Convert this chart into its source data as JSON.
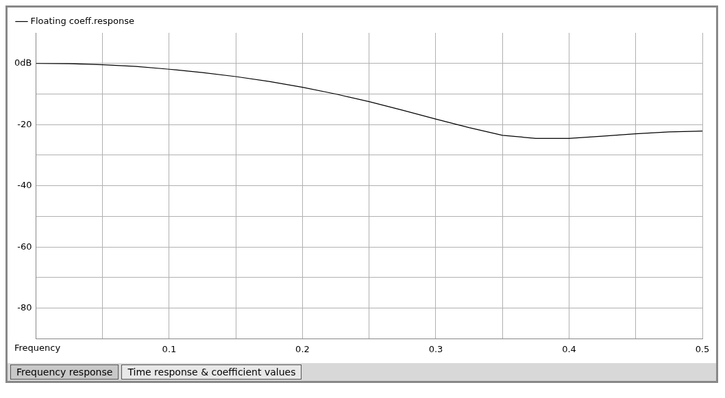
{
  "chart_data": {
    "type": "line",
    "xlabel": "Frequency",
    "x": [
      0,
      0.025,
      0.05,
      0.075,
      0.1,
      0.125,
      0.15,
      0.175,
      0.2,
      0.225,
      0.25,
      0.275,
      0.3,
      0.325,
      0.35,
      0.375,
      0.4,
      0.425,
      0.45,
      0.475,
      0.5
    ],
    "series": [
      {
        "name": "Floating coeff.response",
        "color": "#000000",
        "values": [
          0,
          -0.1,
          -0.4,
          -1,
          -1.9,
          -3,
          -4.3,
          -5.9,
          -7.8,
          -10,
          -12.5,
          -15.3,
          -18.2,
          -21,
          -23.5,
          -24.5,
          -24.5,
          -23.8,
          -23,
          -22.4,
          -22.1
        ]
      }
    ],
    "xlim": [
      0,
      0.5
    ],
    "ylim": [
      -90,
      10
    ],
    "xticks": [
      {
        "value": 0.05,
        "label": null
      },
      0.1,
      {
        "value": 0.15,
        "label": null
      },
      0.2,
      {
        "value": 0.25,
        "label": null
      },
      0.3,
      {
        "value": 0.35,
        "label": null
      },
      0.4,
      {
        "value": 0.45,
        "label": null
      },
      0.5
    ],
    "yticks": [
      {
        "value": 0,
        "label": "0dB"
      },
      {
        "value": -10,
        "label": null
      },
      -20,
      {
        "value": -30,
        "label": null
      },
      -40,
      {
        "value": -50,
        "label": null
      },
      -60,
      {
        "value": -70,
        "label": null
      },
      -80
    ],
    "grid": true,
    "legend": "top left",
    "line_style": "solid",
    "marker": "none",
    "annotations": [
      "Frequency response",
      "Time response & coefficient values"
    ]
  }
}
